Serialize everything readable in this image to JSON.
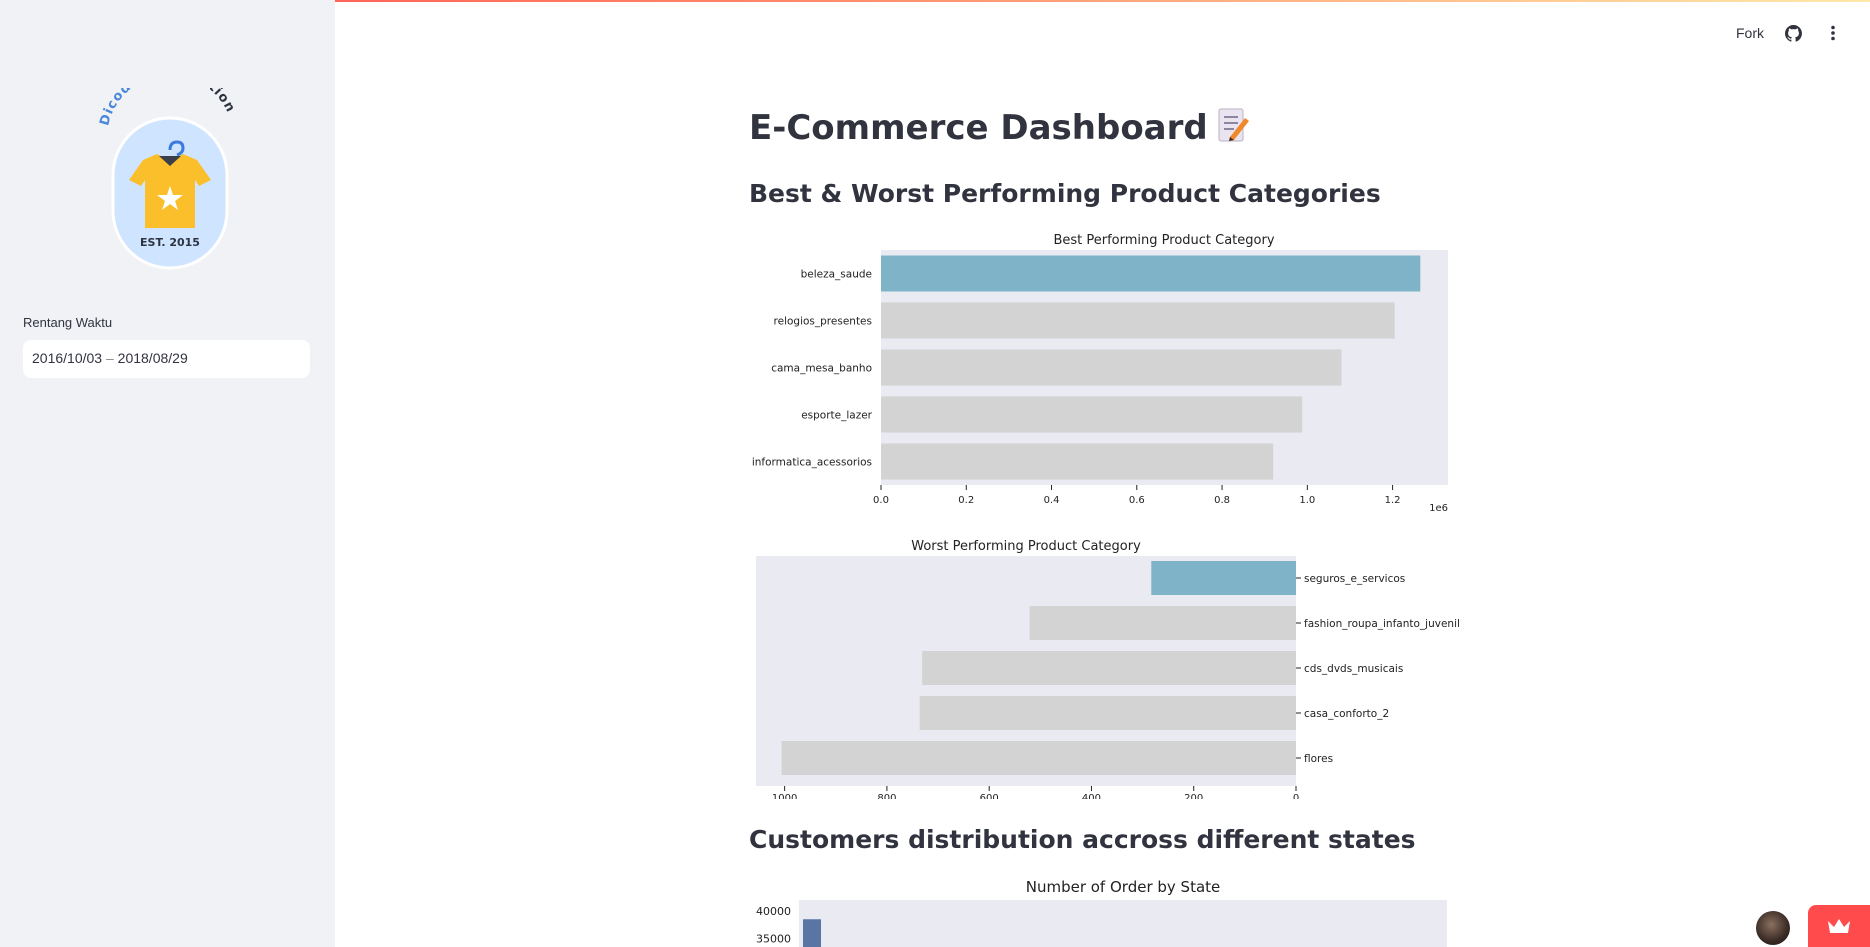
{
  "sidebar": {
    "logo": {
      "arc_word_1": "Dicoding",
      "arc_word_2": "Collection",
      "established": "EST. 2015"
    },
    "date_label": "Rentang Waktu",
    "date_start": "2016/10/03",
    "date_separator": "–",
    "date_end": "2018/08/29"
  },
  "header": {
    "fork_label": "Fork",
    "icons": [
      "github-icon",
      "more-vertical-icon"
    ]
  },
  "main": {
    "title": "E-Commerce Dashboard",
    "title_emoji": "memo-icon",
    "section1_title": "Best & Worst Performing Product Categories",
    "section2_title": "Customers distribution accross different states"
  },
  "colors": {
    "highlight": "#7fb4c8",
    "bar": "#d3d3d3",
    "plot_bg": "#eaeaf2",
    "state_bar": "#5975a4",
    "accent": "#ff4b4b"
  },
  "chart_data": [
    {
      "type": "bar",
      "orientation": "horizontal",
      "title": "Best Performing Product Category",
      "categories": [
        "beleza_saude",
        "relogios_presentes",
        "cama_mesa_banho",
        "esporte_lazer",
        "informatica_acessorios"
      ],
      "values": [
        1265000,
        1205000,
        1080000,
        988000,
        920000
      ],
      "xlim": [
        0,
        1330000
      ],
      "xticks": [
        "0.0",
        "0.2",
        "0.4",
        "0.6",
        "0.8",
        "1.0",
        "1.2"
      ],
      "offset_label": "1e6",
      "highlight_index": 0
    },
    {
      "type": "bar",
      "orientation": "horizontal",
      "title": "Worst Performing Product Category",
      "inverted_x": true,
      "categories": [
        "seguros_e_servicos",
        "fashion_roupa_infanto_juvenil",
        "cds_dvds_musicais",
        "casa_conforto_2",
        "flores"
      ],
      "values": [
        283,
        521,
        731,
        736,
        1006
      ],
      "xlim": [
        0,
        1056
      ],
      "xticks": [
        "1000",
        "800",
        "600",
        "400",
        "200",
        "0"
      ],
      "highlight_index": 0
    },
    {
      "type": "bar",
      "title": "Number of Order by State",
      "yticks": [
        "40000",
        "35000"
      ],
      "values": [
        38500
      ]
    }
  ]
}
